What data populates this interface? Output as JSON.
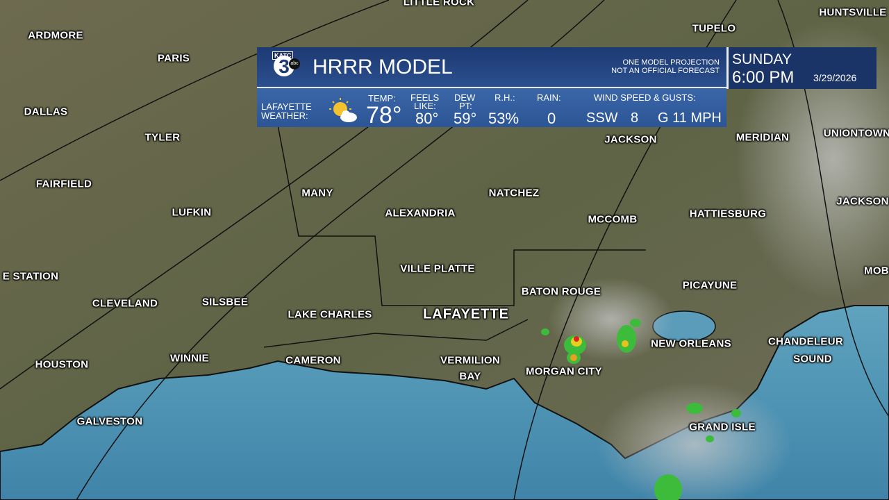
{
  "header": {
    "logo": {
      "station": "KATC",
      "channel": "3",
      "network": "abc"
    },
    "title": "HRRR MODEL",
    "disclaimer": [
      "ONE MODEL PROJECTION",
      "NOT AN OFFICIAL FORECAST"
    ],
    "day": "SUNDAY",
    "time": "6:00 PM",
    "date": "3/29/2026"
  },
  "conditions": {
    "location": [
      "LAFAYETTE",
      "WEATHER:"
    ],
    "temp": {
      "label": "TEMP:",
      "value": "78°"
    },
    "feels_like": {
      "label": [
        "FEELS",
        "LIKE:"
      ],
      "value": "80°"
    },
    "dew_point": {
      "label": [
        "DEW",
        "PT:"
      ],
      "value": "59°"
    },
    "humidity": {
      "label": "R.H.:",
      "value": "53%"
    },
    "rain": {
      "label": "RAIN:",
      "value": "0"
    },
    "wind": {
      "label": "WIND SPEED & GUSTS:",
      "direction": "SSW",
      "speed": "8",
      "gusts": "G 11 MPH"
    }
  },
  "map": {
    "labels": [
      "LITTLE ROCK",
      "HUNTSVILLE",
      "TUPELO",
      "ARDMORE",
      "PARIS",
      "DALLAS",
      "TYLER",
      "JACKSON",
      "MERIDIAN",
      "UNIONTOWN",
      "FAIRFIELD",
      "MANY",
      "NATCHEZ",
      "JACKSON",
      "LUFKIN",
      "ALEXANDRIA",
      "MCCOMB",
      "HATTIESBURG",
      "VILLE PLATTE",
      "E STATION",
      "MOB",
      "BATON ROUGE",
      "PICAYUNE",
      "CLEVELAND",
      "SILSBEE",
      "LAKE CHARLES",
      "LAFAYETTE",
      "NEW ORLEANS",
      "CHANDELEUR",
      "SOUND",
      "HOUSTON",
      "WINNIE",
      "CAMERON",
      "VERMILION",
      "BAY",
      "MORGAN CITY",
      "GALVESTON",
      "GRAND ISLE"
    ]
  }
}
